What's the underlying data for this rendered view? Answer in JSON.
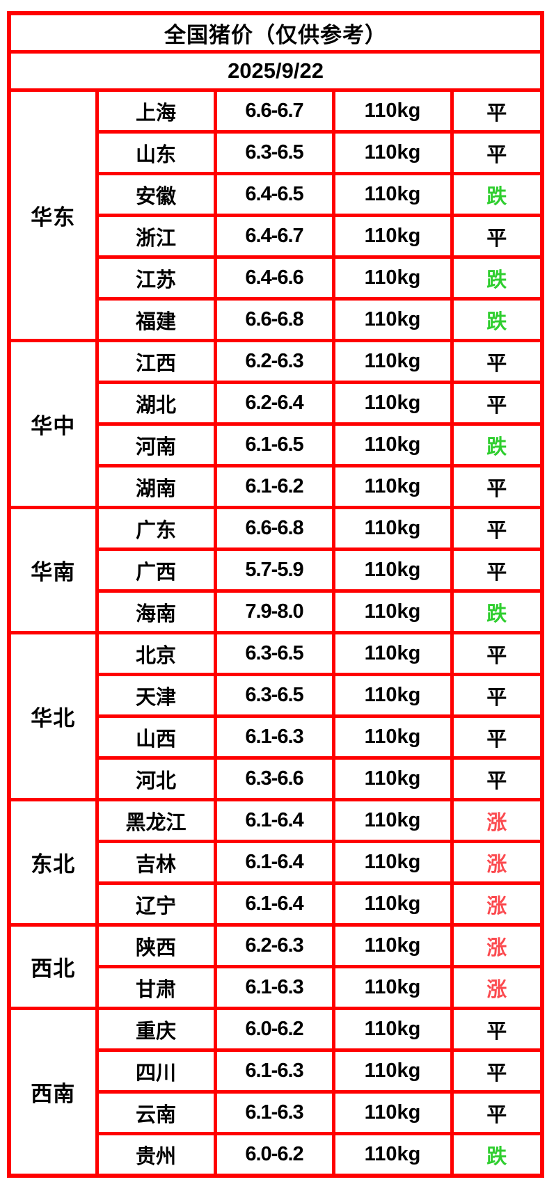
{
  "title": "全国猪价（仅供参考）",
  "date": "2025/9/22",
  "colors": {
    "header_bg": "#ED6C1E",
    "table_border": "#FF0000",
    "status_flat": "#000000",
    "status_down": "#2FCE2F",
    "status_up": "#FB4A4F"
  },
  "chart_data": {
    "type": "table",
    "title": "全国猪价（仅供参考）",
    "date": "2025/9/22",
    "row_format": [
      "province",
      "price_range",
      "weight",
      "trend"
    ],
    "regions": [
      {
        "name": "华东",
        "rows": [
          [
            "上海",
            "6.6-6.7",
            "110kg",
            "平"
          ],
          [
            "山东",
            "6.3-6.5",
            "110kg",
            "平"
          ],
          [
            "安徽",
            "6.4-6.5",
            "110kg",
            "跌"
          ],
          [
            "浙江",
            "6.4-6.7",
            "110kg",
            "平"
          ],
          [
            "江苏",
            "6.4-6.6",
            "110kg",
            "跌"
          ],
          [
            "福建",
            "6.6-6.8",
            "110kg",
            "跌"
          ]
        ]
      },
      {
        "name": "华中",
        "rows": [
          [
            "江西",
            "6.2-6.3",
            "110kg",
            "平"
          ],
          [
            "湖北",
            "6.2-6.4",
            "110kg",
            "平"
          ],
          [
            "河南",
            "6.1-6.5",
            "110kg",
            "跌"
          ],
          [
            "湖南",
            "6.1-6.2",
            "110kg",
            "平"
          ]
        ]
      },
      {
        "name": "华南",
        "rows": [
          [
            "广东",
            "6.6-6.8",
            "110kg",
            "平"
          ],
          [
            "广西",
            "5.7-5.9",
            "110kg",
            "平"
          ],
          [
            "海南",
            "7.9-8.0",
            "110kg",
            "跌"
          ]
        ]
      },
      {
        "name": "华北",
        "rows": [
          [
            "北京",
            "6.3-6.5",
            "110kg",
            "平"
          ],
          [
            "天津",
            "6.3-6.5",
            "110kg",
            "平"
          ],
          [
            "山西",
            "6.1-6.3",
            "110kg",
            "平"
          ],
          [
            "河北",
            "6.3-6.6",
            "110kg",
            "平"
          ]
        ]
      },
      {
        "name": "东北",
        "rows": [
          [
            "黑龙江",
            "6.1-6.4",
            "110kg",
            "涨"
          ],
          [
            "吉林",
            "6.1-6.4",
            "110kg",
            "涨"
          ],
          [
            "辽宁",
            "6.1-6.4",
            "110kg",
            "涨"
          ]
        ]
      },
      {
        "name": "西北",
        "rows": [
          [
            "陕西",
            "6.2-6.3",
            "110kg",
            "涨"
          ],
          [
            "甘肃",
            "6.1-6.3",
            "110kg",
            "涨"
          ]
        ]
      },
      {
        "name": "西南",
        "rows": [
          [
            "重庆",
            "6.0-6.2",
            "110kg",
            "平"
          ],
          [
            "四川",
            "6.1-6.3",
            "110kg",
            "平"
          ],
          [
            "云南",
            "6.1-6.3",
            "110kg",
            "平"
          ],
          [
            "贵州",
            "6.0-6.2",
            "110kg",
            "跌"
          ]
        ]
      }
    ]
  }
}
